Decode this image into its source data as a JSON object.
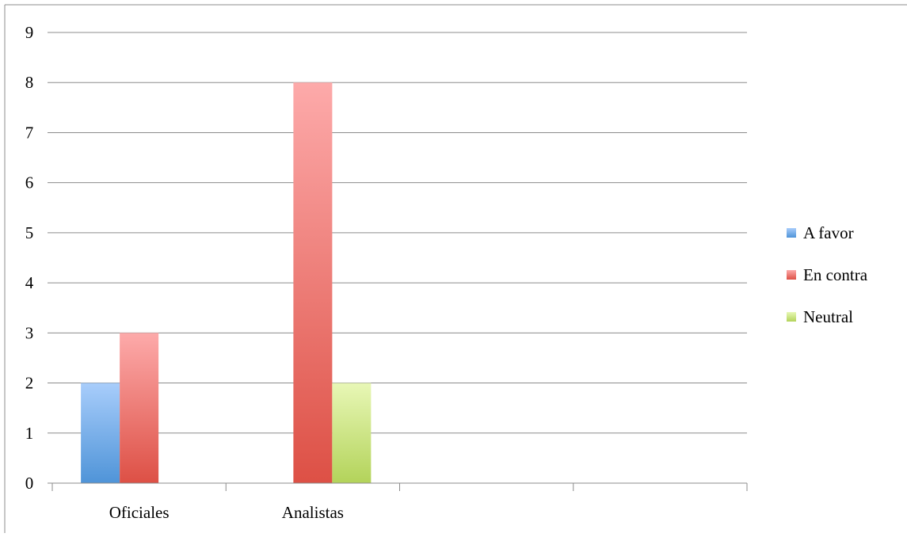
{
  "chart_data": {
    "type": "bar",
    "title": "",
    "xlabel": "",
    "ylabel": "",
    "categories": [
      "Oficiales",
      "Analistas",
      "",
      ""
    ],
    "series": [
      {
        "name": "A favor",
        "values": [
          2,
          0,
          null,
          null
        ],
        "color": "#4f94d8",
        "color_light": "#a8cdfb"
      },
      {
        "name": "En contra",
        "values": [
          3,
          8,
          null,
          null
        ],
        "color": "#dd5045",
        "color_light": "#fdaaaa"
      },
      {
        "name": "Neutral",
        "values": [
          0,
          2,
          null,
          null
        ],
        "color": "#b3d35a",
        "color_light": "#e8f7b6"
      }
    ],
    "ylim": [
      0,
      9
    ],
    "yticks": [
      "0",
      "1",
      "2",
      "3",
      "4",
      "5",
      "6",
      "7",
      "8",
      "9"
    ],
    "grid": true,
    "legend_position": "right"
  }
}
